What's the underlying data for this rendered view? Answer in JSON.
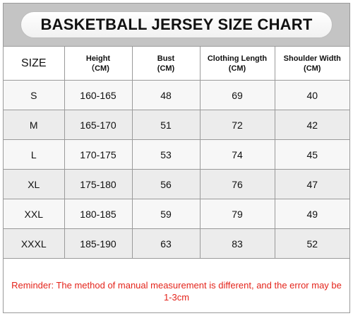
{
  "title": "BASKETBALL JERSEY SIZE CHART",
  "columns": [
    {
      "line1": "SIZE",
      "line2": ""
    },
    {
      "line1": "Height",
      "line2": "（CM)"
    },
    {
      "line1": "Bust",
      "line2": "(CM)"
    },
    {
      "line1": "Clothing Length",
      "line2": "(CM)"
    },
    {
      "line1": "Shoulder Width",
      "line2": "(CM)"
    }
  ],
  "rows": [
    [
      "S",
      "160-165",
      "48",
      "69",
      "40"
    ],
    [
      "M",
      "165-170",
      "51",
      "72",
      "42"
    ],
    [
      "L",
      "170-175",
      "53",
      "74",
      "45"
    ],
    [
      "XL",
      "175-180",
      "56",
      "76",
      "47"
    ],
    [
      "XXL",
      "180-185",
      "59",
      "79",
      "49"
    ],
    [
      "XXXL",
      "185-190",
      "63",
      "83",
      "52"
    ]
  ],
  "reminder": "Reminder: The method of manual measurement is different, and the error may be 1-3cm",
  "colors": {
    "title_band": "#c4c4c4",
    "reminder_text": "#e4241b",
    "row_alt": "#ececec"
  }
}
